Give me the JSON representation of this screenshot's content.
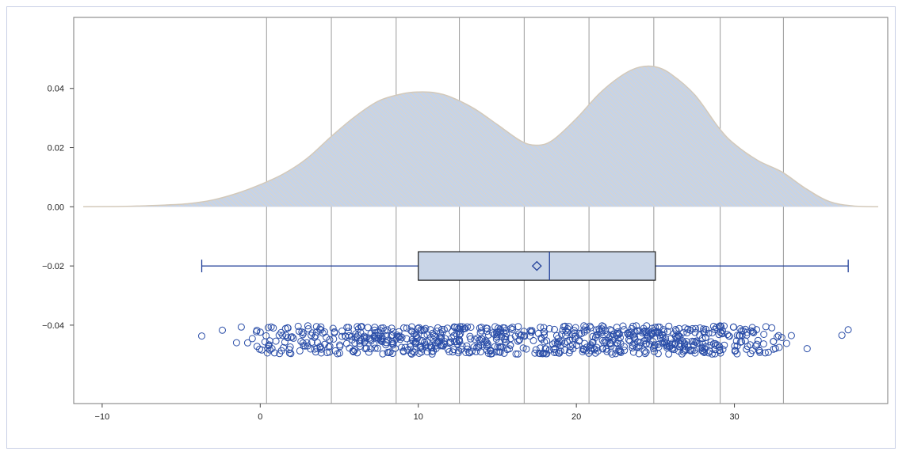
{
  "chart_data": {
    "type": "density-box-strip",
    "title": "",
    "xlabel": "",
    "ylabel": "",
    "xlim": [
      -11.8,
      39.7
    ],
    "ylim": [
      -0.0665,
      0.064
    ],
    "x_ticks": [
      -10,
      0,
      10,
      20,
      30
    ],
    "x_tick_labels": [
      "−10",
      "0",
      "10",
      "20",
      "30"
    ],
    "y_ticks": [
      0.04,
      0.02,
      0.0,
      -0.02,
      -0.04
    ],
    "y_tick_labels": [
      "0.04",
      "0.02",
      "0.00",
      "−0.02",
      "−0.04"
    ],
    "vertical_reference_lines": [
      0.4,
      4.5,
      8.6,
      12.6,
      16.7,
      20.8,
      24.9,
      29.1,
      33.1
    ],
    "density": {
      "x": [
        -11.2,
        -9,
        -7.5,
        -6,
        -4.5,
        -3,
        -1.5,
        0,
        1.5,
        3,
        4.5,
        6,
        7.5,
        9,
        10,
        11,
        12,
        13.5,
        15,
        16.5,
        17.5,
        18.5,
        20,
        21.5,
        23,
        24,
        25,
        26,
        27.5,
        29,
        30,
        31.5,
        33,
        34.5,
        36,
        37.5,
        39.1
      ],
      "y": [
        0,
        0.0001,
        0.0003,
        0.0006,
        0.0011,
        0.0023,
        0.0045,
        0.0075,
        0.0112,
        0.0165,
        0.0238,
        0.0305,
        0.0358,
        0.0382,
        0.0388,
        0.0386,
        0.0372,
        0.0333,
        0.0278,
        0.0222,
        0.0208,
        0.0225,
        0.0298,
        0.0385,
        0.0448,
        0.0472,
        0.0473,
        0.0448,
        0.0378,
        0.0268,
        0.0212,
        0.0156,
        0.0118,
        0.0062,
        0.0018,
        0.0003,
        0
      ],
      "fill": "#c5d3e8",
      "hatch_color": "#e9d3b5",
      "outline": "#d3c9ba"
    },
    "boxplot": {
      "y": -0.02,
      "whisker_low": -3.7,
      "q1": 10.0,
      "median": 18.3,
      "mean": 17.5,
      "q3": 25.0,
      "whisker_high": 37.2,
      "box_fill": "#c9d5e7",
      "box_stroke": "#1a1a1a",
      "whisker_color": "#23419a"
    },
    "strip": {
      "marker": "open-circle",
      "color": "#2b4ea8",
      "y_range": [
        -0.0498,
        -0.0402
      ],
      "x": [
        -3.7,
        -2.4,
        -1.5,
        -1.2,
        -0.8,
        -0.5,
        -0.2,
        0.1,
        0.3,
        0.6,
        0.9,
        1.2,
        1.6,
        1.9,
        2.1,
        2.4,
        2.7,
        3.0,
        3.3,
        3.6,
        33.0,
        33.3,
        33.6,
        34.6,
        36.8,
        37.2
      ],
      "points_per_unit": [
        [
          -0.5,
          1,
          10
        ],
        [
          1,
          3,
          12
        ],
        [
          3,
          5,
          17
        ],
        [
          5,
          7,
          24
        ],
        [
          7,
          9,
          28
        ],
        [
          9,
          11,
          30
        ],
        [
          11,
          13,
          29
        ],
        [
          13,
          15,
          27
        ],
        [
          15,
          17,
          23
        ],
        [
          17,
          19,
          22
        ],
        [
          19,
          21,
          26
        ],
        [
          21,
          23,
          31
        ],
        [
          23,
          25,
          33
        ],
        [
          25,
          27,
          32
        ],
        [
          27,
          29,
          28
        ],
        [
          29,
          31,
          21
        ],
        [
          31,
          33,
          14
        ]
      ]
    }
  }
}
